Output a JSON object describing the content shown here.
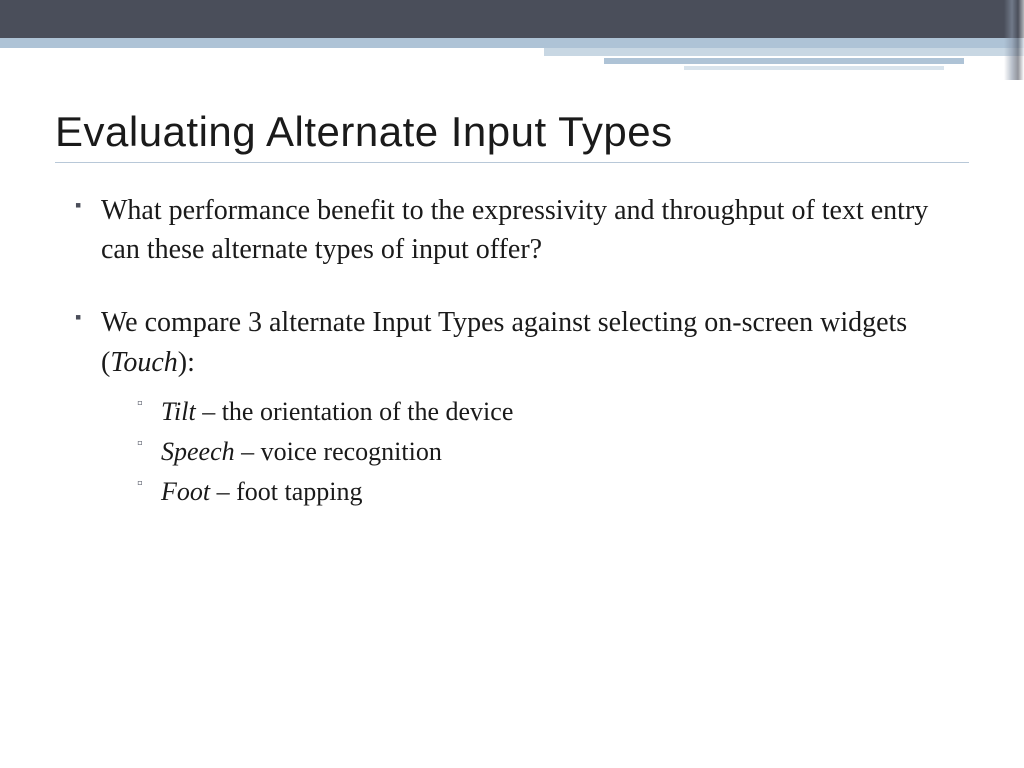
{
  "colors": {
    "header_dark": "#4a4e5a",
    "header_light": "#aec3d6",
    "title_underline": "#b8c8d8",
    "text": "#1a1a1a",
    "background": "#ffffff"
  },
  "typography": {
    "title_font": "Trebuchet MS",
    "title_size_pt": 32,
    "body_font": "Georgia",
    "body_size_pt": 21,
    "sub_size_pt": 20
  },
  "title": "Evaluating Alternate Input Types",
  "bullets": [
    {
      "text": "What performance benefit to the expressivity and throughput of text entry can these alternate types of input offer?"
    },
    {
      "prefix": "We compare 3 alternate Input Types against selecting on-screen widgets (",
      "emph": "Touch",
      "suffix": "):",
      "sub": [
        {
          "term": "Tilt",
          "desc": " – the orientation of the device"
        },
        {
          "term": "Speech",
          "desc": " – voice recognition"
        },
        {
          "term": "Foot",
          "desc": " – foot tapping"
        }
      ]
    }
  ]
}
